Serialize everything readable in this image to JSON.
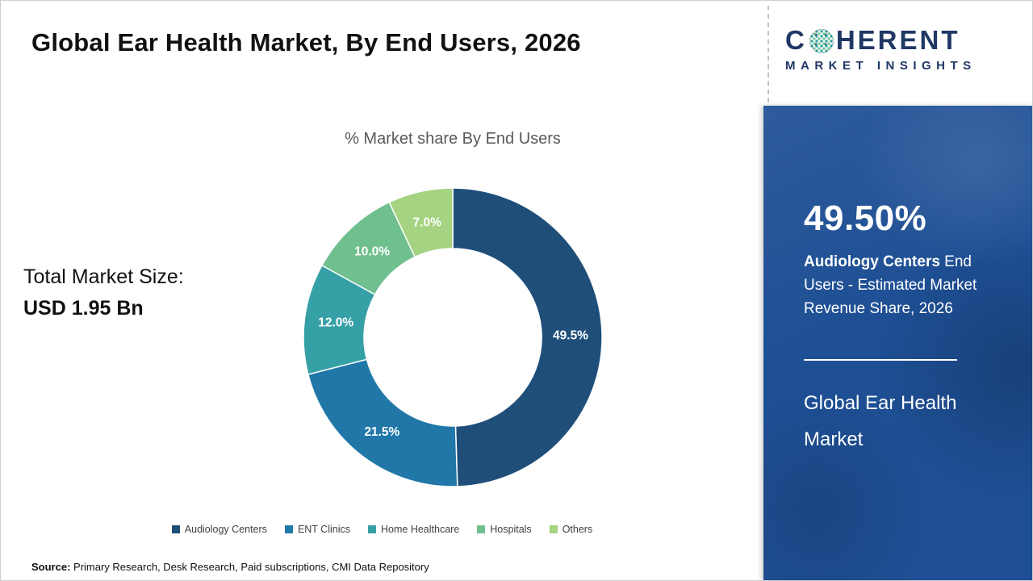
{
  "header": {
    "title": "Global Ear Health Market, By End Users, 2026"
  },
  "logo": {
    "word_start": "C",
    "word_end": "HERENT",
    "subtitle": "MARKET INSIGHTS"
  },
  "chart_data": {
    "type": "pie",
    "donut": true,
    "title": "% Market share By End Users",
    "categories": [
      "Audiology Centers",
      "ENT Clinics",
      "Home Healthcare",
      "Hospitals",
      "Others"
    ],
    "values": [
      49.5,
      21.5,
      12.0,
      10.0,
      7.0
    ],
    "labels": [
      "49.5%",
      "21.5%",
      "12.0%",
      "10.0%",
      "7.0%"
    ],
    "colors": [
      "#1F4E79",
      "#2077A8",
      "#35A0A6",
      "#70BF8E",
      "#A5D381"
    ],
    "legend_position": "bottom",
    "start_angle_deg": 0,
    "direction": "clockwise"
  },
  "market_size": {
    "label": "Total Market Size:",
    "value": "USD 1.95 Bn"
  },
  "sidebar": {
    "highlight_value": "49.50%",
    "highlight_bold": "Audiology Centers",
    "highlight_rest": " End Users - Estimated Market Revenue Share, 2026",
    "market_name": "Global Ear Health Market"
  },
  "footer": {
    "source_label": "Source:",
    "source_text": " Primary Research, Desk Research, Paid subscriptions, CMI Data Repository"
  }
}
